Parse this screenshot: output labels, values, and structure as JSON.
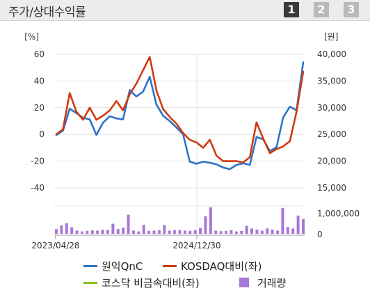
{
  "header": {
    "title": "주가/상대수익률",
    "tabs": [
      {
        "label": "1",
        "active": true
      },
      {
        "label": "2",
        "active": false
      },
      {
        "label": "3",
        "active": false
      }
    ]
  },
  "legend": {
    "items": [
      {
        "label": "원익QnC",
        "color": "#2f72c9",
        "kind": "line"
      },
      {
        "label": "KOSDAQ대비(좌)",
        "color": "#cf3a10",
        "kind": "line"
      },
      {
        "label": "코스닥 비금속대비(좌)",
        "color": "#86c21a",
        "kind": "line"
      },
      {
        "label": "거래량",
        "color": "#a878d8",
        "kind": "box"
      }
    ]
  },
  "chart_data": {
    "type": "line",
    "left_axis": {
      "unit": "[%]",
      "ticks": [
        "60",
        "40",
        "20",
        "0",
        "-20",
        "-40"
      ],
      "range": [
        -40,
        60
      ]
    },
    "right_axis": {
      "unit": "[원]",
      "ticks": [
        "40,000",
        "35,000",
        "30,000",
        "25,000",
        "20,000",
        "15,000"
      ],
      "range": [
        15000,
        40000
      ]
    },
    "volume_axis": {
      "ticks": [
        "1,000,000",
        "0"
      ],
      "range": [
        0,
        1000000
      ]
    },
    "x_tick_labels": [
      "2023/04/28",
      "2024/12/30"
    ],
    "series": [
      {
        "name": "원익QnC",
        "color": "#2f72c9",
        "axis": "right",
        "values": [
          24900,
          25700,
          29800,
          29000,
          28100,
          27800,
          24900,
          27200,
          28400,
          28000,
          27800,
          33300,
          32100,
          33000,
          35800,
          30600,
          28500,
          27500,
          26300,
          25000,
          19900,
          19500,
          19900,
          19700,
          19400,
          18800,
          18500,
          19300,
          19600,
          19300,
          24500,
          24100,
          21900,
          22600,
          28200,
          30200,
          29500,
          38500
        ]
      },
      {
        "name": "KOSDAQ대비(좌)",
        "color": "#cf3a10",
        "axis": "left",
        "values": [
          0,
          4,
          31,
          17,
          11,
          20,
          11,
          14,
          18,
          25,
          18,
          30,
          38,
          48,
          58,
          33,
          19,
          13,
          8,
          1,
          -4,
          -6,
          -10,
          -4,
          -16,
          -20,
          -20,
          -20,
          -21,
          -17,
          9,
          -3,
          -14,
          -11,
          -9,
          -5,
          17,
          47
        ]
      },
      {
        "name": "거래량",
        "color": "#a878d8",
        "axis": "volume",
        "values": [
          180000,
          320000,
          400000,
          250000,
          120000,
          90000,
          110000,
          130000,
          120000,
          150000,
          140000,
          380000,
          180000,
          230000,
          720000,
          120000,
          90000,
          340000,
          110000,
          120000,
          140000,
          330000,
          120000,
          130000,
          140000,
          120000,
          110000,
          130000,
          220000,
          660000,
          1000000,
          120000,
          100000,
          110000,
          140000,
          90000,
          110000,
          300000,
          200000,
          160000,
          120000,
          200000,
          160000,
          120000,
          980000,
          260000,
          200000,
          690000,
          560000
        ]
      }
    ]
  }
}
